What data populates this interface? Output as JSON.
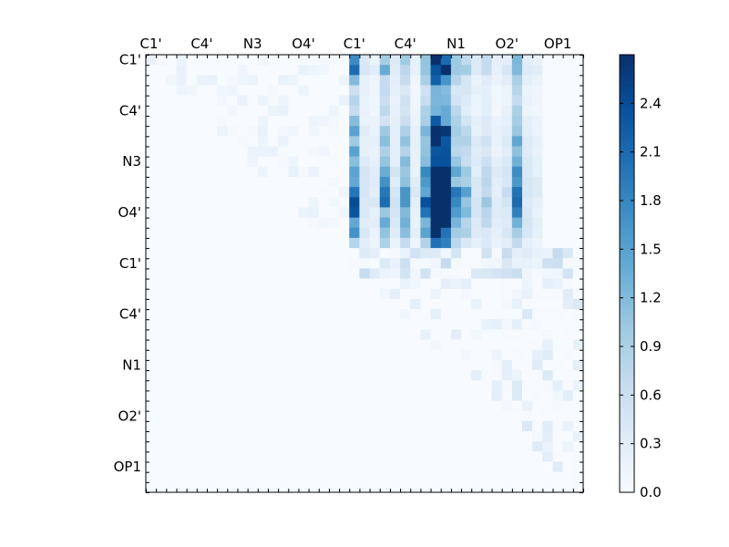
{
  "chart_data": {
    "type": "heatmap",
    "title": "",
    "xlabel": "",
    "ylabel": "",
    "x_tick_labels": [
      "C1'",
      "C4'",
      "N3",
      "O4'",
      "C1'",
      "C4'",
      "N1",
      "O2'",
      "OP1"
    ],
    "y_tick_labels": [
      "C1'",
      "C4'",
      "N3",
      "O4'",
      "C1'",
      "C4'",
      "N1",
      "O2'",
      "OP1"
    ],
    "grid_size": 43,
    "colormap": "Blues",
    "colorbar": {
      "min": 0.0,
      "max": 2.7,
      "ticks": [
        "0.0",
        "0.3",
        "0.6",
        "0.9",
        "1.2",
        "1.5",
        "1.8",
        "2.1",
        "2.4"
      ],
      "tick_values": [
        0.0,
        0.3,
        0.6,
        0.9,
        1.2,
        1.5,
        1.8,
        2.1,
        2.4
      ]
    },
    "blocks": [
      {
        "region": "rows C1'-O4' (first group) x columns C1'-OP1 (second group)",
        "approx_range": [
          0.1,
          2.7
        ]
      },
      {
        "region": "rows C1'-OP1 (second group) x columns C1'-OP1 (second group), upper triangle",
        "approx_range": [
          0.0,
          0.6
        ]
      },
      {
        "region": "rows C1'-O4' (first group) x columns C1'-O4' (first group), upper triangle",
        "approx_range": [
          0.0,
          0.2
        ]
      },
      {
        "region": "lower triangle",
        "approx_range": [
          0.0,
          0.0
        ]
      }
    ]
  }
}
